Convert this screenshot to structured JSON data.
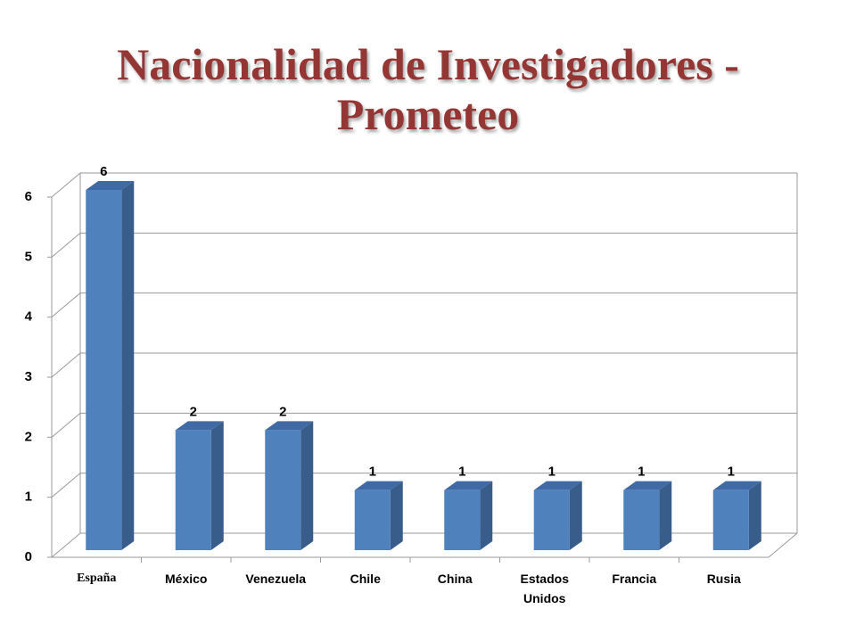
{
  "chart_data": {
    "type": "bar3d",
    "title": "Nacionalidad de Investigadores - Prometeo",
    "categories": [
      "España",
      "México",
      "Venezuela",
      "Chile",
      "China",
      "Estados Unidos",
      "Francia",
      "Rusia"
    ],
    "values": [
      6,
      2,
      2,
      1,
      1,
      1,
      1,
      1
    ],
    "color": "#4f81bd",
    "ylim": [
      0,
      6
    ],
    "yticks": [
      0,
      1,
      2,
      3,
      4,
      5,
      6
    ],
    "grid": true
  }
}
